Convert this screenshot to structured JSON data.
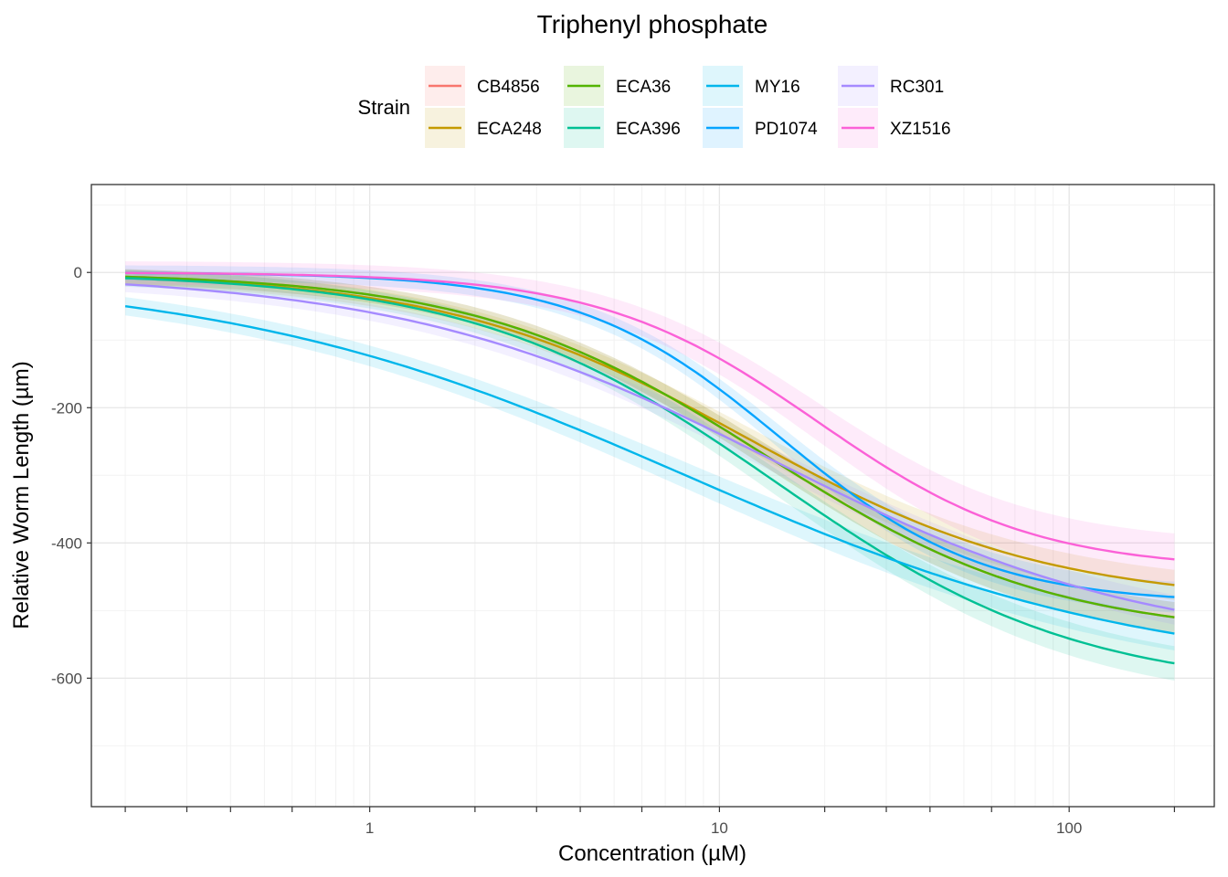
{
  "chart_data": {
    "type": "line",
    "title": "Triphenyl phosphate",
    "xlabel": "Concentration (µM)",
    "ylabel": "Relative Worm Length (µm)",
    "x_scale": "log10",
    "xlim": [
      0.16,
      260
    ],
    "ylim": [
      -790,
      130
    ],
    "x_ticks": [
      {
        "value": 1,
        "label": "1"
      },
      {
        "value": 10,
        "label": "10"
      },
      {
        "value": 100,
        "label": "100"
      }
    ],
    "y_ticks": [
      {
        "value": 0,
        "label": "0"
      },
      {
        "value": -200,
        "label": "-200"
      },
      {
        "value": -400,
        "label": "-400"
      },
      {
        "value": -600,
        "label": "-600"
      }
    ],
    "x_dose_ticks": [
      0.2,
      0.3,
      0.4,
      0.6,
      1,
      2,
      3,
      4,
      6,
      10,
      20,
      30,
      40,
      60,
      100,
      200
    ],
    "x_range_fit": [
      0.2,
      200
    ],
    "legend": {
      "title": "Strain",
      "position": "top",
      "ncol": 4
    },
    "series": [
      {
        "name": "CB4856",
        "color": "#F8766D",
        "fit": {
          "upper": 0,
          "lower": -540,
          "ec50": 13.5,
          "hill": 1.05
        },
        "ci_halfwidth": 12
      },
      {
        "name": "ECA248",
        "color": "#C49A00",
        "fit": {
          "upper": 0,
          "lower": -490,
          "ec50": 12.0,
          "hill": 1.0
        },
        "ci_halfwidth": 12
      },
      {
        "name": "ECA36",
        "color": "#53B400",
        "fit": {
          "upper": 0,
          "lower": -540,
          "ec50": 13.5,
          "hill": 1.05
        },
        "ci_halfwidth": 12
      },
      {
        "name": "ECA396",
        "color": "#00C094",
        "fit": {
          "upper": 0,
          "lower": -620,
          "ec50": 14.5,
          "hill": 1.0
        },
        "ci_halfwidth": 14
      },
      {
        "name": "MY16",
        "color": "#00B6EB",
        "fit": {
          "upper": 0,
          "lower": -600,
          "ec50": 8.0,
          "hill": 0.65
        },
        "ci_halfwidth": 14
      },
      {
        "name": "PD1074",
        "color": "#06A4FF",
        "fit": {
          "upper": 0,
          "lower": -490,
          "ec50": 15.0,
          "hill": 1.5
        },
        "ci_halfwidth": 12
      },
      {
        "name": "RC301",
        "color": "#A58AFF",
        "fit": {
          "upper": 0,
          "lower": -560,
          "ec50": 14.5,
          "hill": 0.8
        },
        "ci_halfwidth": 12
      },
      {
        "name": "XZ1516",
        "color": "#FB61D7",
        "fit": {
          "upper": 0,
          "lower": -440,
          "ec50": 19.0,
          "hill": 1.4
        },
        "ci_halfwidth": 22
      }
    ]
  },
  "colors": {
    "panel_border": "#333333",
    "grid_major": "#e6e6e6",
    "grid_minor": "#f2f2f2"
  }
}
